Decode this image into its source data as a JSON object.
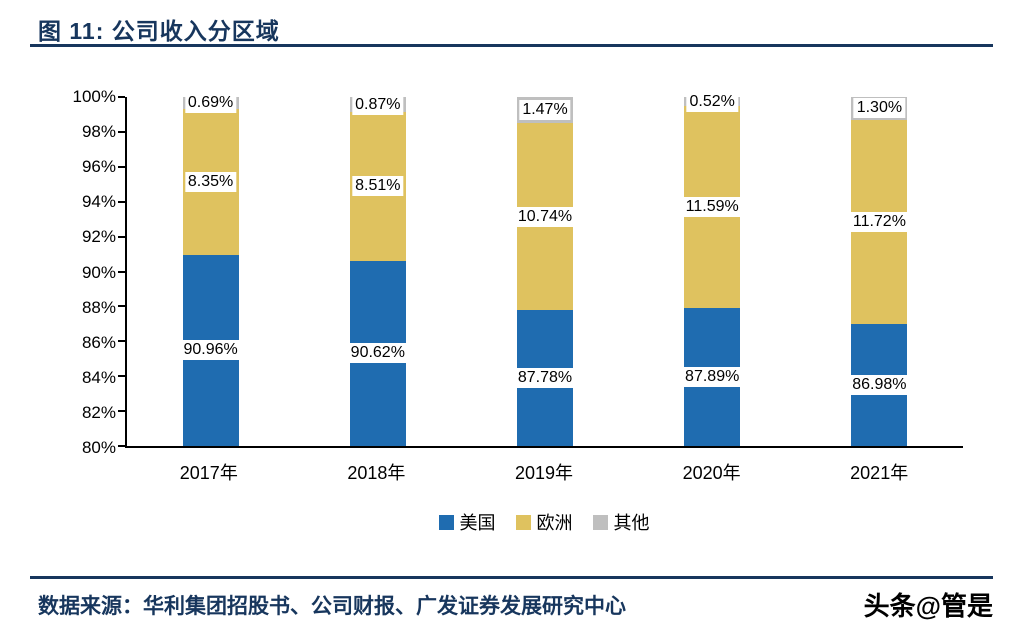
{
  "header": {
    "title": "图 11: 公司收入分区域"
  },
  "footer": {
    "source": "数据来源：华利集团招股书、公司财报、广发证券发展研究中心",
    "watermark": "头条@管是"
  },
  "colors": {
    "accent_navy": "#17365D",
    "axis_black": "#000000",
    "series_us_blue": "#1F6CB0",
    "series_europe_gold": "#DFC25F",
    "series_other_gray": "#BFBFBF"
  },
  "chart_data": {
    "type": "bar",
    "stacked": true,
    "title": "图 11: 公司收入分区域",
    "categories": [
      "2017年",
      "2018年",
      "2019年",
      "2020年",
      "2021年"
    ],
    "series": [
      {
        "name": "美国",
        "color": "#1F6CB0",
        "values": [
          90.96,
          90.62,
          87.78,
          87.89,
          86.98
        ],
        "labels": [
          "90.96%",
          "90.62%",
          "87.78%",
          "87.89%",
          "86.98%"
        ]
      },
      {
        "name": "欧洲",
        "color": "#DFC25F",
        "values": [
          8.35,
          8.51,
          10.74,
          11.59,
          11.72
        ],
        "labels": [
          "8.35%",
          "8.51%",
          "10.74%",
          "11.59%",
          "11.72%"
        ]
      },
      {
        "name": "其他",
        "color": "#BFBFBF",
        "values": [
          0.69,
          0.87,
          1.47,
          0.52,
          1.3
        ],
        "labels": [
          "0.69%",
          "0.87%",
          "1.47%",
          "0.52%",
          "1.30%"
        ]
      }
    ],
    "ylim": [
      80,
      100
    ],
    "yticks": [
      "100%",
      "98%",
      "96%",
      "94%",
      "92%",
      "90%",
      "88%",
      "86%",
      "84%",
      "82%",
      "80%"
    ],
    "xlabel": "",
    "ylabel": "",
    "grid": false,
    "legend_position": "bottom",
    "data_label_style": "black text on white box"
  }
}
